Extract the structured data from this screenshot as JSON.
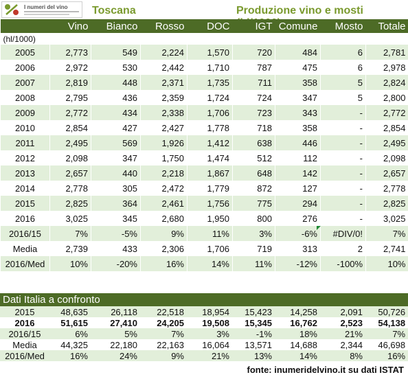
{
  "logo": {
    "text": "I numeri del vino"
  },
  "header": {
    "region": "Toscana",
    "title": "Produzione vino e mosti (hl/1000)"
  },
  "columns": [
    "",
    "Vino",
    "Bianco",
    "Rosso",
    "DOC",
    "IGT",
    "Comune",
    "Mosto",
    "Totale"
  ],
  "unit_label": "(hl/1000)",
  "main_rows": [
    {
      "label": "2005",
      "values": [
        "2,773",
        "549",
        "2,224",
        "1,570",
        "720",
        "484",
        "6",
        "2,781"
      ]
    },
    {
      "label": "2006",
      "values": [
        "2,972",
        "530",
        "2,442",
        "1,710",
        "787",
        "475",
        "6",
        "2,978"
      ]
    },
    {
      "label": "2007",
      "values": [
        "2,819",
        "448",
        "2,371",
        "1,735",
        "711",
        "358",
        "5",
        "2,824"
      ]
    },
    {
      "label": "2008",
      "values": [
        "2,795",
        "436",
        "2,359",
        "1,724",
        "724",
        "347",
        "5",
        "2,800"
      ]
    },
    {
      "label": "2009",
      "values": [
        "2,772",
        "434",
        "2,338",
        "1,706",
        "723",
        "343",
        "-",
        "2,772"
      ]
    },
    {
      "label": "2010",
      "values": [
        "2,854",
        "427",
        "2,427",
        "1,778",
        "718",
        "358",
        "-",
        "2,854"
      ]
    },
    {
      "label": "2011",
      "values": [
        "2,495",
        "569",
        "1,926",
        "1,412",
        "638",
        "446",
        "-",
        "2,495"
      ]
    },
    {
      "label": "2012",
      "values": [
        "2,098",
        "347",
        "1,750",
        "1,474",
        "512",
        "112",
        "-",
        "2,098"
      ]
    },
    {
      "label": "2013",
      "values": [
        "2,657",
        "440",
        "2,218",
        "1,867",
        "648",
        "142",
        "-",
        "2,657"
      ]
    },
    {
      "label": "2014",
      "values": [
        "2,778",
        "305",
        "2,472",
        "1,779",
        "872",
        "127",
        "-",
        "2,778"
      ]
    },
    {
      "label": "2015",
      "values": [
        "2,825",
        "364",
        "2,461",
        "1,756",
        "775",
        "294",
        "-",
        "2,825"
      ]
    },
    {
      "label": "2016",
      "values": [
        "3,025",
        "345",
        "2,680",
        "1,950",
        "800",
        "276",
        "-",
        "3,025"
      ]
    },
    {
      "label": "2016/15",
      "values": [
        "7%",
        "-5%",
        "9%",
        "11%",
        "3%",
        "-6%",
        "#DIV/0!",
        "7%"
      ]
    },
    {
      "label": "Media",
      "values": [
        "2,739",
        "433",
        "2,306",
        "1,706",
        "719",
        "313",
        "2",
        "2,741"
      ]
    },
    {
      "label": "2016/Med",
      "values": [
        "10%",
        "-20%",
        "16%",
        "14%",
        "11%",
        "-12%",
        "-100%",
        "10%"
      ]
    }
  ],
  "italy": {
    "title": "Dati Italia a confronto",
    "rows": [
      {
        "label": "2015",
        "bold": false,
        "values": [
          "48,635",
          "26,118",
          "22,518",
          "18,954",
          "15,423",
          "14,258",
          "2,091",
          "50,726"
        ]
      },
      {
        "label": "2016",
        "bold": true,
        "values": [
          "51,615",
          "27,410",
          "24,205",
          "19,508",
          "15,345",
          "16,762",
          "2,523",
          "54,138"
        ]
      },
      {
        "label": "2016/15",
        "bold": false,
        "values": [
          "6%",
          "5%",
          "7%",
          "3%",
          "-1%",
          "18%",
          "21%",
          "7%"
        ]
      },
      {
        "label": "Media",
        "bold": false,
        "values": [
          "44,325",
          "22,180",
          "22,163",
          "16,064",
          "13,571",
          "14,688",
          "2,344",
          "46,698"
        ]
      },
      {
        "label": "2016/Med",
        "bold": false,
        "values": [
          "16%",
          "24%",
          "9%",
          "21%",
          "13%",
          "14%",
          "8%",
          "16%"
        ]
      }
    ]
  },
  "source": "fonte: inumeridelvino.it su dati ISTAT",
  "colors": {
    "header_bg": "#4d6b26",
    "title_green": "#7a9a2e",
    "row_band": "#e2efda"
  },
  "chart_data": {
    "type": "table",
    "title": "Produzione vino e mosti (hl/1000)",
    "region": "Toscana",
    "columns": [
      "Vino",
      "Bianco",
      "Rosso",
      "DOC",
      "IGT",
      "Comune",
      "Mosto",
      "Totale"
    ],
    "years": [
      "2005",
      "2006",
      "2007",
      "2008",
      "2009",
      "2010",
      "2011",
      "2012",
      "2013",
      "2014",
      "2015",
      "2016"
    ],
    "toscana_values": [
      [
        2773,
        549,
        2224,
        1570,
        720,
        484,
        6,
        2781
      ],
      [
        2972,
        530,
        2442,
        1710,
        787,
        475,
        6,
        2978
      ],
      [
        2819,
        448,
        2371,
        1735,
        711,
        358,
        5,
        2824
      ],
      [
        2795,
        436,
        2359,
        1724,
        724,
        347,
        5,
        2800
      ],
      [
        2772,
        434,
        2338,
        1706,
        723,
        343,
        null,
        2772
      ],
      [
        2854,
        427,
        2427,
        1778,
        718,
        358,
        null,
        2854
      ],
      [
        2495,
        569,
        1926,
        1412,
        638,
        446,
        null,
        2495
      ],
      [
        2098,
        347,
        1750,
        1474,
        512,
        112,
        null,
        2098
      ],
      [
        2657,
        440,
        2218,
        1867,
        648,
        142,
        null,
        2657
      ],
      [
        2778,
        305,
        2472,
        1779,
        872,
        127,
        null,
        2778
      ],
      [
        2825,
        364,
        2461,
        1756,
        775,
        294,
        null,
        2825
      ],
      [
        3025,
        345,
        2680,
        1950,
        800,
        276,
        null,
        3025
      ]
    ],
    "italy_values": {
      "2015": [
        48635,
        26118,
        22518,
        18954,
        15423,
        14258,
        2091,
        50726
      ],
      "2016": [
        51615,
        27410,
        24205,
        19508,
        15345,
        16762,
        2523,
        54138
      ]
    }
  }
}
